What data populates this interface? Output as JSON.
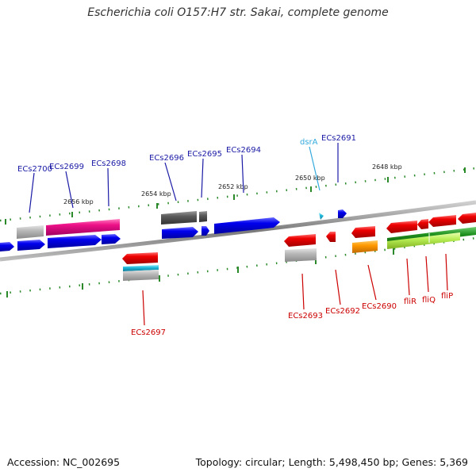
{
  "title": "Escherichia coli O157:H7 str. Sakai, complete genome",
  "footer": {
    "accession": "Accession: NC_002695",
    "summary": "Topology: circular; Length: 5,498,450 bp; Genes: 5,369"
  },
  "ticks": [
    "2656 kbp",
    "2654 kbp",
    "2652 kbp",
    "2650 kbp",
    "2648 kbp"
  ],
  "genes_top": [
    "ECs2700",
    "ECs2699",
    "ECs2698",
    "ECs2696",
    "ECs2695",
    "ECs2694",
    "dsrA",
    "ECs2691"
  ],
  "genes_bottom": [
    "ECs2697",
    "ECs2693",
    "ECs2692",
    "ECs2690",
    "fliR",
    "fliQ",
    "fliP"
  ],
  "colors": {
    "forward_label": "#1a1aa6",
    "reverse_label": "#cc0000",
    "rna_label": "#33aadd",
    "tick_mark": "#2a8a2a",
    "backbone": "#888888"
  }
}
